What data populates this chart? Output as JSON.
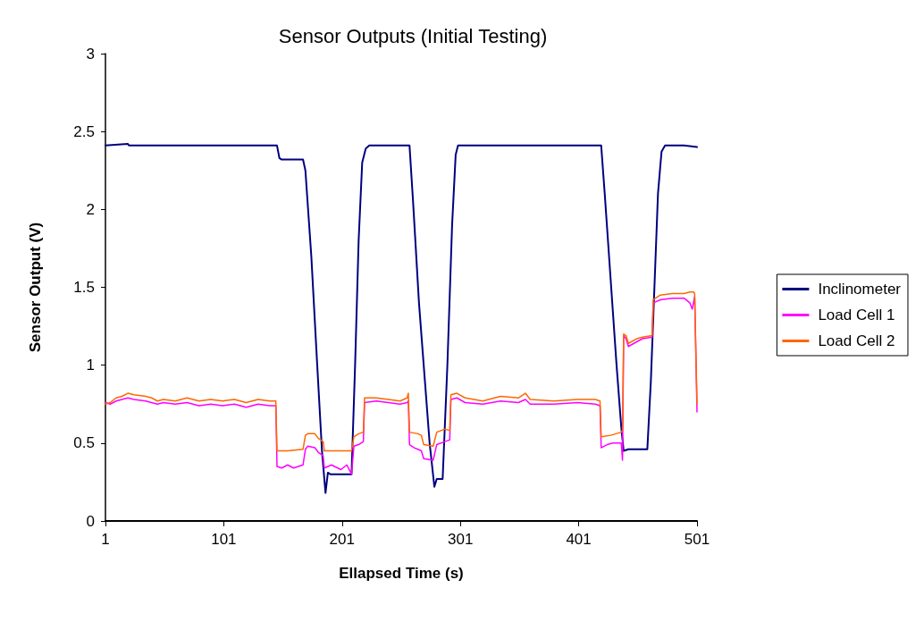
{
  "chart_data": {
    "type": "line",
    "title": "Sensor Outputs (Initial Testing)",
    "xlabel": "Ellapsed Time (s)",
    "ylabel": "Sensor Output (V)",
    "xlim": [
      1,
      501
    ],
    "xticks": [
      1,
      101,
      201,
      301,
      401,
      501
    ],
    "ylim": [
      0,
      3
    ],
    "yticks": [
      0,
      0.5,
      1,
      1.5,
      2,
      2.5,
      3
    ],
    "grid": false,
    "legend": "right",
    "marker": "none",
    "line_style": "solid",
    "series": [
      {
        "name": "Inclinometer",
        "color": "#000080",
        "x": [
          1,
          20,
          21,
          60,
          100,
          146,
          148,
          150,
          168,
          170,
          175,
          180,
          184,
          187,
          189,
          191,
          209,
          212,
          215,
          218,
          221,
          224,
          258,
          261,
          266,
          271,
          275,
          279,
          281,
          286,
          290,
          294,
          297,
          299,
          360,
          420,
          423,
          428,
          433,
          437,
          439,
          443,
          459,
          462,
          465,
          468,
          471,
          474,
          490,
          501
        ],
        "values": [
          2.41,
          2.42,
          2.41,
          2.41,
          2.41,
          2.41,
          2.33,
          2.32,
          2.32,
          2.25,
          1.7,
          1.0,
          0.45,
          0.18,
          0.31,
          0.3,
          0.3,
          1.0,
          1.8,
          2.3,
          2.39,
          2.41,
          2.41,
          2.05,
          1.4,
          0.9,
          0.5,
          0.22,
          0.27,
          0.27,
          1.0,
          1.9,
          2.35,
          2.41,
          2.41,
          2.41,
          2.1,
          1.55,
          1.0,
          0.6,
          0.45,
          0.46,
          0.46,
          0.9,
          1.5,
          2.1,
          2.37,
          2.41,
          2.41,
          2.4
        ]
      },
      {
        "name": "Load Cell 1",
        "color": "#ff00ff",
        "x": [
          1,
          5,
          10,
          15,
          20,
          25,
          35,
          40,
          45,
          50,
          60,
          70,
          80,
          90,
          100,
          110,
          120,
          130,
          140,
          145,
          146,
          150,
          155,
          160,
          168,
          170,
          172,
          178,
          181,
          185,
          186,
          192,
          200,
          205,
          209,
          211,
          215,
          219,
          220,
          230,
          240,
          250,
          256,
          257,
          258,
          262,
          265,
          268,
          270,
          278,
          281,
          288,
          292,
          293,
          298,
          305,
          320,
          335,
          350,
          356,
          360,
          380,
          400,
          415,
          419,
          420,
          425,
          430,
          437,
          438,
          439,
          441,
          443,
          450,
          455,
          463,
          464,
          470,
          480,
          490,
          495,
          497,
          499,
          501
        ],
        "values": [
          0.76,
          0.75,
          0.77,
          0.78,
          0.79,
          0.78,
          0.77,
          0.76,
          0.75,
          0.76,
          0.75,
          0.76,
          0.74,
          0.75,
          0.74,
          0.75,
          0.73,
          0.75,
          0.74,
          0.74,
          0.35,
          0.34,
          0.36,
          0.34,
          0.36,
          0.46,
          0.48,
          0.47,
          0.44,
          0.42,
          0.34,
          0.36,
          0.33,
          0.36,
          0.3,
          0.48,
          0.49,
          0.51,
          0.76,
          0.77,
          0.76,
          0.75,
          0.76,
          0.77,
          0.49,
          0.47,
          0.46,
          0.45,
          0.4,
          0.39,
          0.49,
          0.51,
          0.52,
          0.78,
          0.79,
          0.76,
          0.75,
          0.77,
          0.76,
          0.78,
          0.75,
          0.75,
          0.76,
          0.75,
          0.74,
          0.47,
          0.49,
          0.5,
          0.5,
          0.39,
          1.19,
          1.17,
          1.12,
          1.15,
          1.17,
          1.18,
          1.4,
          1.42,
          1.43,
          1.43,
          1.4,
          1.36,
          1.44,
          0.7
        ]
      },
      {
        "name": "Load Cell 2",
        "color": "#ff6600",
        "x": [
          1,
          5,
          10,
          15,
          20,
          25,
          35,
          40,
          45,
          50,
          60,
          70,
          80,
          90,
          100,
          110,
          120,
          130,
          140,
          145,
          146,
          155,
          168,
          170,
          172,
          178,
          181,
          185,
          186,
          200,
          209,
          211,
          215,
          219,
          220,
          230,
          240,
          250,
          256,
          257,
          258,
          265,
          268,
          270,
          278,
          281,
          288,
          292,
          293,
          298,
          305,
          320,
          335,
          350,
          356,
          360,
          380,
          400,
          415,
          419,
          420,
          428,
          437,
          438,
          439,
          441,
          443,
          450,
          455,
          463,
          464,
          470,
          480,
          490,
          495,
          498,
          499,
          501
        ],
        "values": [
          0.75,
          0.76,
          0.79,
          0.8,
          0.82,
          0.81,
          0.8,
          0.79,
          0.77,
          0.78,
          0.77,
          0.79,
          0.77,
          0.78,
          0.77,
          0.78,
          0.76,
          0.78,
          0.77,
          0.77,
          0.45,
          0.45,
          0.46,
          0.55,
          0.56,
          0.56,
          0.53,
          0.51,
          0.45,
          0.45,
          0.45,
          0.54,
          0.56,
          0.57,
          0.79,
          0.79,
          0.78,
          0.77,
          0.79,
          0.82,
          0.57,
          0.56,
          0.55,
          0.49,
          0.48,
          0.57,
          0.59,
          0.58,
          0.81,
          0.82,
          0.79,
          0.77,
          0.8,
          0.79,
          0.82,
          0.78,
          0.77,
          0.78,
          0.78,
          0.77,
          0.54,
          0.55,
          0.57,
          0.58,
          1.2,
          1.19,
          1.14,
          1.17,
          1.18,
          1.19,
          1.42,
          1.45,
          1.46,
          1.46,
          1.47,
          1.47,
          1.46,
          0.75
        ]
      }
    ]
  }
}
